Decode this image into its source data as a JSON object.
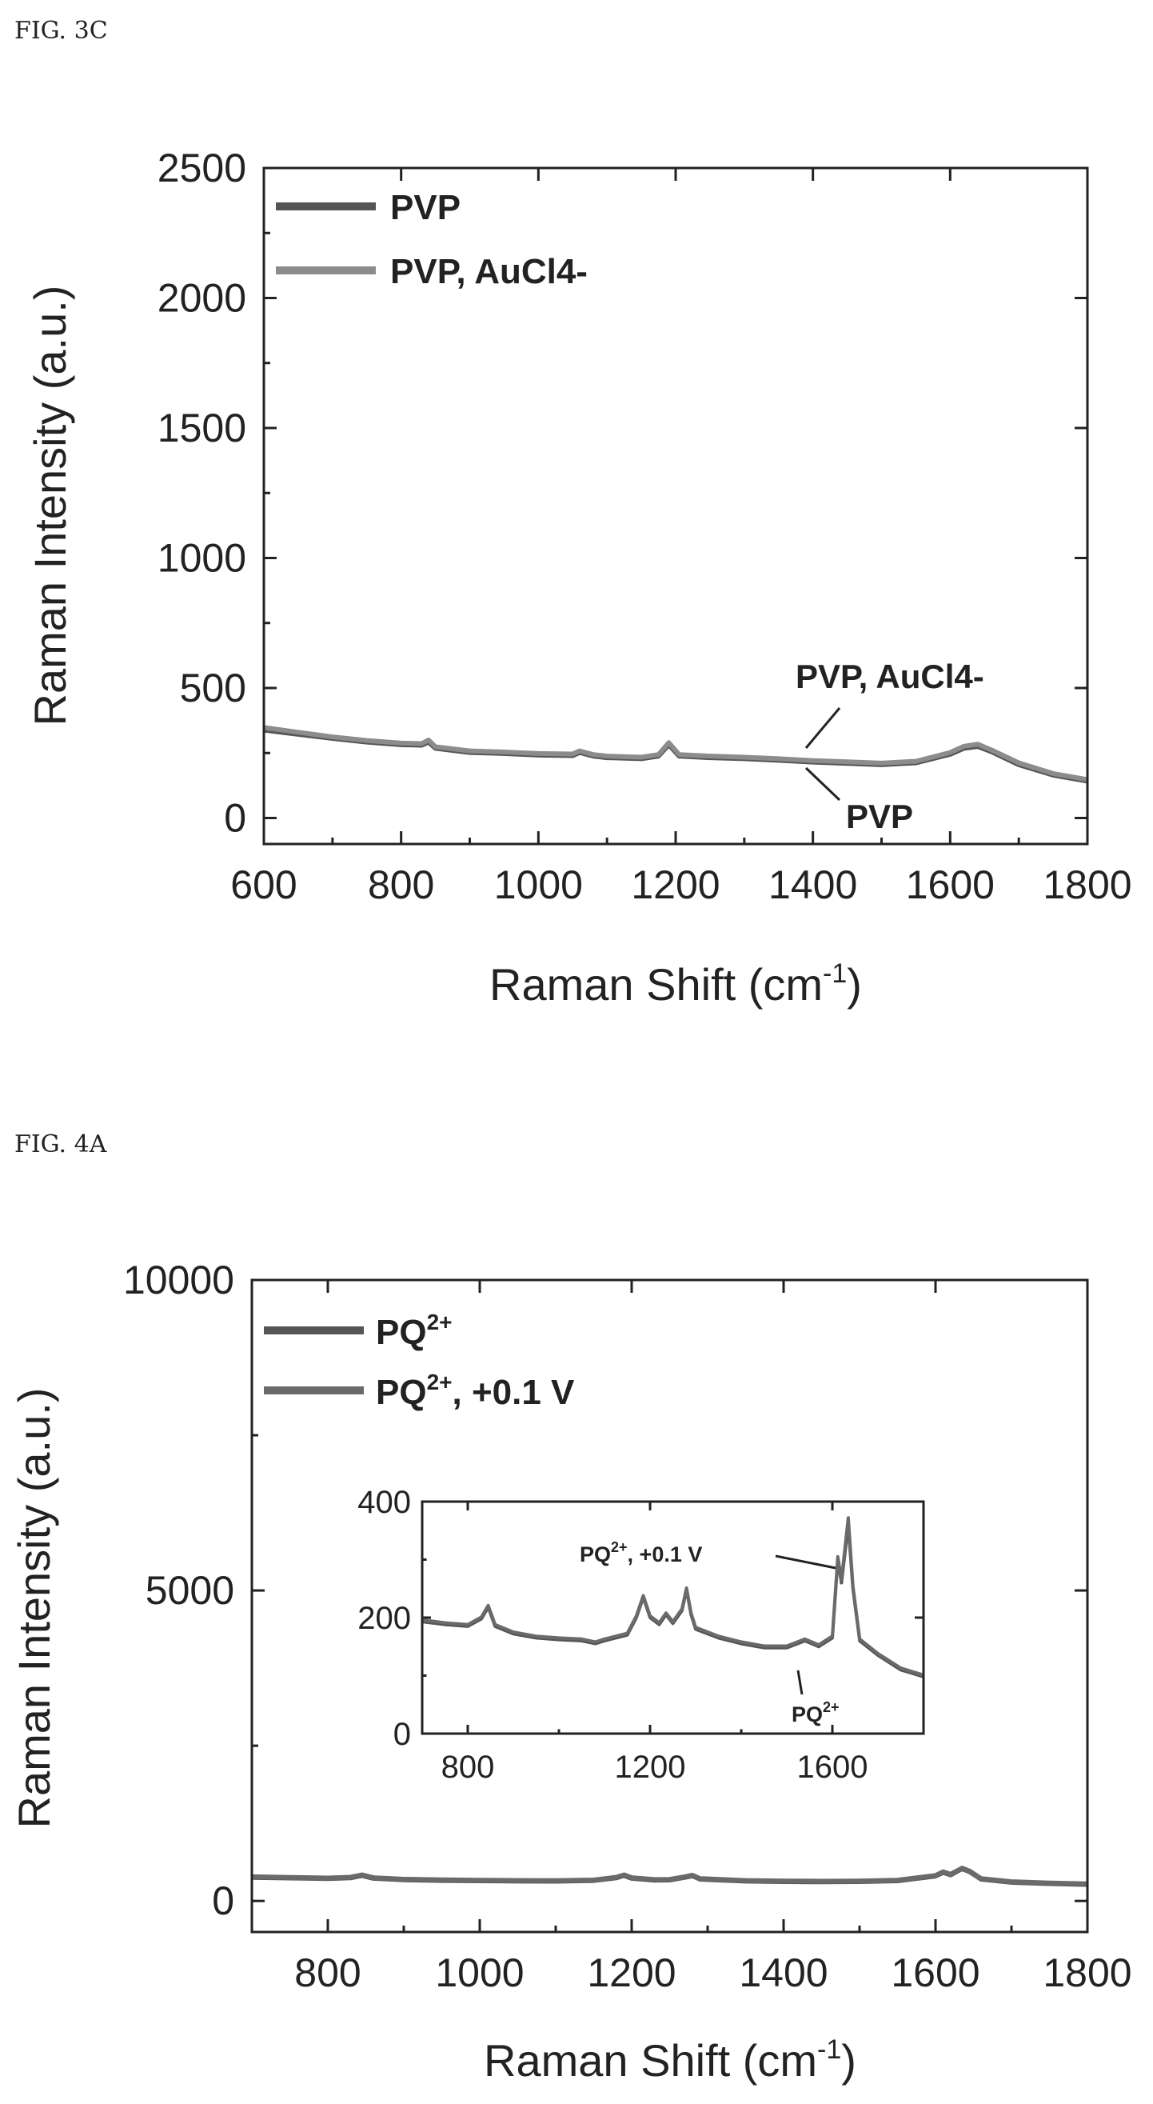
{
  "chart_data": [
    {
      "figure_label": "FIG. 3C",
      "type": "line",
      "xlabel": "Raman Shift (cm-1)",
      "ylabel": "Raman Intensity (a.u.)",
      "xlim": [
        600,
        1800
      ],
      "ylim": [
        -100,
        2500
      ],
      "xticks": [
        600,
        800,
        1000,
        1200,
        1400,
        1600,
        1800
      ],
      "yticks": [
        0,
        500,
        1000,
        1500,
        2000,
        2500
      ],
      "legend_position": "top-left",
      "grid": false,
      "series": [
        {
          "name": "PVP",
          "color": "#555555",
          "x": [
            600,
            650,
            700,
            750,
            800,
            830,
            840,
            850,
            900,
            950,
            1000,
            1050,
            1060,
            1080,
            1100,
            1150,
            1175,
            1190,
            1205,
            1250,
            1300,
            1350,
            1400,
            1450,
            1500,
            1550,
            1600,
            1620,
            1640,
            1660,
            1700,
            1750,
            1800
          ],
          "y": [
            338,
            322,
            306,
            292,
            282,
            280,
            292,
            268,
            252,
            248,
            242,
            240,
            252,
            238,
            232,
            228,
            238,
            282,
            238,
            232,
            228,
            222,
            215,
            210,
            205,
            212,
            245,
            268,
            275,
            255,
            205,
            165,
            142
          ]
        },
        {
          "name": "PVP, AuCl4-",
          "color": "#8c8c8c",
          "x": [
            600,
            650,
            700,
            750,
            800,
            830,
            840,
            850,
            900,
            950,
            1000,
            1050,
            1060,
            1080,
            1100,
            1150,
            1175,
            1190,
            1205,
            1250,
            1300,
            1350,
            1400,
            1450,
            1500,
            1550,
            1600,
            1620,
            1640,
            1660,
            1700,
            1750,
            1800
          ],
          "y": [
            348,
            330,
            312,
            298,
            288,
            286,
            300,
            274,
            258,
            254,
            248,
            246,
            258,
            244,
            238,
            234,
            244,
            290,
            244,
            238,
            234,
            228,
            221,
            216,
            211,
            218,
            252,
            276,
            284,
            262,
            212,
            171,
            148
          ]
        }
      ],
      "annotations": [
        "PVP, AuCl4-",
        "PVP"
      ]
    },
    {
      "figure_label": "FIG. 4A",
      "type": "line",
      "xlabel": "Raman Shift (cm-1)",
      "ylabel": "Raman Intensity (a.u.)",
      "xlim": [
        700,
        1800
      ],
      "ylim": [
        -500,
        10000
      ],
      "xticks": [
        800,
        1000,
        1200,
        1400,
        1600,
        1800
      ],
      "yticks": [
        0,
        5000,
        10000
      ],
      "legend_position": "top-left",
      "grid": false,
      "series": [
        {
          "name": "PQ2+",
          "color": "#555555",
          "x": [
            700,
            750,
            800,
            830,
            845,
            860,
            900,
            950,
            1000,
            1050,
            1100,
            1150,
            1180,
            1190,
            1200,
            1230,
            1250,
            1270,
            1280,
            1290,
            1350,
            1400,
            1450,
            1500,
            1550,
            1600,
            1610,
            1620,
            1635,
            1645,
            1660,
            1700,
            1750,
            1800
          ],
          "y": [
            380,
            370,
            360,
            372,
            410,
            365,
            340,
            330,
            325,
            320,
            318,
            328,
            372,
            410,
            365,
            335,
            338,
            380,
            405,
            350,
            320,
            312,
            308,
            312,
            325,
            400,
            460,
            420,
            520,
            470,
            350,
            300,
            280,
            265
          ]
        },
        {
          "name": "PQ2+, +0.1 V",
          "color": "#6a6a6a",
          "x": [
            700,
            750,
            800,
            830,
            845,
            860,
            900,
            950,
            1000,
            1050,
            1100,
            1150,
            1180,
            1190,
            1200,
            1230,
            1250,
            1270,
            1280,
            1290,
            1350,
            1400,
            1450,
            1500,
            1550,
            1600,
            1610,
            1620,
            1635,
            1645,
            1660,
            1700,
            1750,
            1800
          ],
          "y": [
            390,
            380,
            370,
            382,
            420,
            375,
            350,
            340,
            335,
            330,
            328,
            338,
            382,
            420,
            375,
            345,
            348,
            390,
            415,
            360,
            330,
            322,
            318,
            322,
            335,
            410,
            470,
            430,
            530,
            480,
            360,
            310,
            290,
            275
          ]
        }
      ],
      "inset": {
        "xlim": [
          700,
          1800
        ],
        "ylim": [
          0,
          400
        ],
        "xticks": [
          800,
          1200,
          1600
        ],
        "yticks": [
          0,
          200,
          400
        ],
        "series": [
          {
            "name": "PQ2+",
            "color": "#555555",
            "x": [
              700,
              750,
              800,
              830,
              845,
              860,
              900,
              950,
              1000,
              1050,
              1080,
              1100,
              1150,
              1170,
              1185,
              1200,
              1220,
              1235,
              1250,
              1270,
              1280,
              1290,
              1300,
              1350,
              1400,
              1450,
              1500,
              1540,
              1570,
              1600,
              1612,
              1620,
              1635,
              1645,
              1660,
              1700,
              1750,
              1800
            ],
            "y": [
              193,
              188,
              185,
              198,
              218,
              185,
              172,
              165,
              162,
              160,
              155,
              160,
              170,
              200,
              235,
              200,
              188,
              205,
              190,
              212,
              248,
              205,
              180,
              165,
              155,
              148,
              148,
              160,
              150,
              165,
              300,
              260,
              360,
              250,
              160,
              135,
              110,
              98
            ]
          },
          {
            "name": "PQ2+, +0.1 V",
            "color": "#6a6a6a",
            "x": [
              700,
              750,
              800,
              830,
              845,
              860,
              900,
              950,
              1000,
              1050,
              1080,
              1100,
              1150,
              1170,
              1185,
              1200,
              1220,
              1235,
              1250,
              1270,
              1280,
              1290,
              1300,
              1350,
              1400,
              1450,
              1500,
              1540,
              1570,
              1600,
              1612,
              1620,
              1635,
              1645,
              1660,
              1700,
              1750,
              1800
            ],
            "y": [
              196,
              191,
              188,
              201,
              221,
              188,
              175,
              168,
              165,
              163,
              158,
              163,
              173,
              203,
              238,
              203,
              191,
              208,
              193,
              215,
              251,
              208,
              183,
              168,
              158,
              151,
              151,
              163,
              153,
              168,
              305,
              265,
              372,
              255,
              163,
              138,
              113,
              101
            ]
          }
        ],
        "annotations": [
          "PQ2+, +0.1 V",
          "PQ2+"
        ]
      }
    }
  ]
}
